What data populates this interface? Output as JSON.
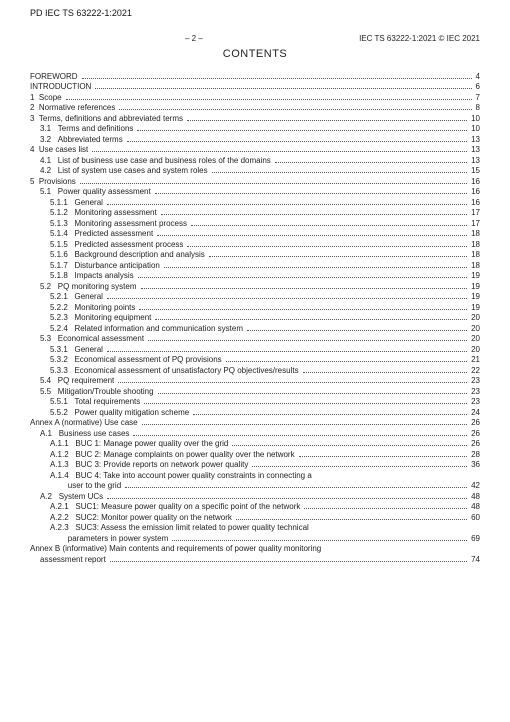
{
  "doc_id_top": "PD IEC TS 63222-1:2021",
  "header": {
    "pagenum": "– 2 –",
    "right": "IEC TS 63222-1:2021 © IEC 2021"
  },
  "contents_title": "CONTENTS",
  "toc": [
    {
      "indent": 0,
      "num": "",
      "label": "FOREWORD",
      "page": "4"
    },
    {
      "indent": 0,
      "num": "",
      "label": "INTRODUCTION",
      "page": "6"
    },
    {
      "indent": 0,
      "num": "1",
      "label": "Scope",
      "page": "7"
    },
    {
      "indent": 0,
      "num": "2",
      "label": "Normative references",
      "page": "8"
    },
    {
      "indent": 0,
      "num": "3",
      "label": "Terms, definitions and abbreviated terms",
      "page": "10"
    },
    {
      "indent": 1,
      "num": "3.1",
      "label": "Terms and definitions",
      "page": "10"
    },
    {
      "indent": 1,
      "num": "3.2",
      "label": "Abbreviated terms",
      "page": "13"
    },
    {
      "indent": 0,
      "num": "4",
      "label": "Use cases list",
      "page": "13"
    },
    {
      "indent": 1,
      "num": "4.1",
      "label": "List of business use case and business roles of the domains",
      "page": "13"
    },
    {
      "indent": 1,
      "num": "4.2",
      "label": "List of system use cases and system roles",
      "page": "15"
    },
    {
      "indent": 0,
      "num": "5",
      "label": "Provisions",
      "page": "16"
    },
    {
      "indent": 1,
      "num": "5.1",
      "label": "Power quality assessment",
      "page": "16"
    },
    {
      "indent": 2,
      "num": "5.1.1",
      "label": "General",
      "page": "16"
    },
    {
      "indent": 2,
      "num": "5.1.2",
      "label": "Monitoring assessment",
      "page": "17"
    },
    {
      "indent": 2,
      "num": "5.1.3",
      "label": "Monitoring assessment process",
      "page": "17"
    },
    {
      "indent": 2,
      "num": "5.1.4",
      "label": "Predicted assessment",
      "page": "18"
    },
    {
      "indent": 2,
      "num": "5.1.5",
      "label": "Predicted assessment process",
      "page": "18"
    },
    {
      "indent": 2,
      "num": "5.1.6",
      "label": "Background description and analysis",
      "page": "18"
    },
    {
      "indent": 2,
      "num": "5.1.7",
      "label": "Disturbance anticipation",
      "page": "18"
    },
    {
      "indent": 2,
      "num": "5.1.8",
      "label": "Impacts analysis",
      "page": "19"
    },
    {
      "indent": 1,
      "num": "5.2",
      "label": "PQ monitoring system",
      "page": "19"
    },
    {
      "indent": 2,
      "num": "5.2.1",
      "label": "General",
      "page": "19"
    },
    {
      "indent": 2,
      "num": "5.2.2",
      "label": "Monitoring points",
      "page": "19"
    },
    {
      "indent": 2,
      "num": "5.2.3",
      "label": "Monitoring equipment",
      "page": "20"
    },
    {
      "indent": 2,
      "num": "5.2.4",
      "label": "Related information and communication system",
      "page": "20"
    },
    {
      "indent": 1,
      "num": "5.3",
      "label": "Economical assessment",
      "page": "20"
    },
    {
      "indent": 2,
      "num": "5.3.1",
      "label": "General",
      "page": "20"
    },
    {
      "indent": 2,
      "num": "5.3.2",
      "label": "Economical assessment of PQ provisions",
      "page": "21"
    },
    {
      "indent": 2,
      "num": "5.3.3",
      "label": "Economical assessment of unsatisfactory PQ objectives/results",
      "page": "22"
    },
    {
      "indent": 1,
      "num": "5.4",
      "label": "PQ requirement",
      "page": "23"
    },
    {
      "indent": 1,
      "num": "5.5",
      "label": "Mitigation/Trouble shooting",
      "page": "23"
    },
    {
      "indent": 2,
      "num": "5.5.1",
      "label": "Total requirements",
      "page": "23"
    },
    {
      "indent": 2,
      "num": "5.5.2",
      "label": "Power quality mitigation scheme",
      "page": "24"
    },
    {
      "indent": 0,
      "num": "",
      "label": "Annex A (normative)  Use case",
      "page": "26"
    },
    {
      "indent": 1,
      "num": "A.1",
      "label": "Business use cases",
      "page": "26"
    },
    {
      "indent": 2,
      "num": "A.1.1",
      "label": "BUC 1: Manage power quality over the grid",
      "page": "26"
    },
    {
      "indent": 2,
      "num": "A.1.2",
      "label": "BUC 2: Manage complaints on power quality over the network",
      "page": "28"
    },
    {
      "indent": 2,
      "num": "A.1.3",
      "label": "BUC 3: Provide reports on network power quality",
      "page": "36"
    },
    {
      "indent": 2,
      "num": "A.1.4",
      "label": "BUC 4: Take into account power quality constraints in connecting a user to the grid",
      "page": "42",
      "wrap": true,
      "line2": "user to the grid"
    },
    {
      "indent": 1,
      "num": "A.2",
      "label": "System UCs",
      "page": "48"
    },
    {
      "indent": 2,
      "num": "A.2.1",
      "label": "SUC1: Measure power quality on a specific point of the network",
      "page": "48"
    },
    {
      "indent": 2,
      "num": "A.2.2",
      "label": "SUC2: Monitor power quality on the network",
      "page": "60"
    },
    {
      "indent": 2,
      "num": "A.2.3",
      "label": "SUC3: Assess the emission limit related to power quality technical parameters in power system",
      "page": "69",
      "wrap": true,
      "line2": "parameters in power system"
    },
    {
      "indent": 0,
      "num": "",
      "label": "Annex B (informative)  Main contents and requirements of power  quality monitoring assessment report",
      "page": "74",
      "wrap": true,
      "line2": "assessment report",
      "line2_indent": 1
    }
  ]
}
